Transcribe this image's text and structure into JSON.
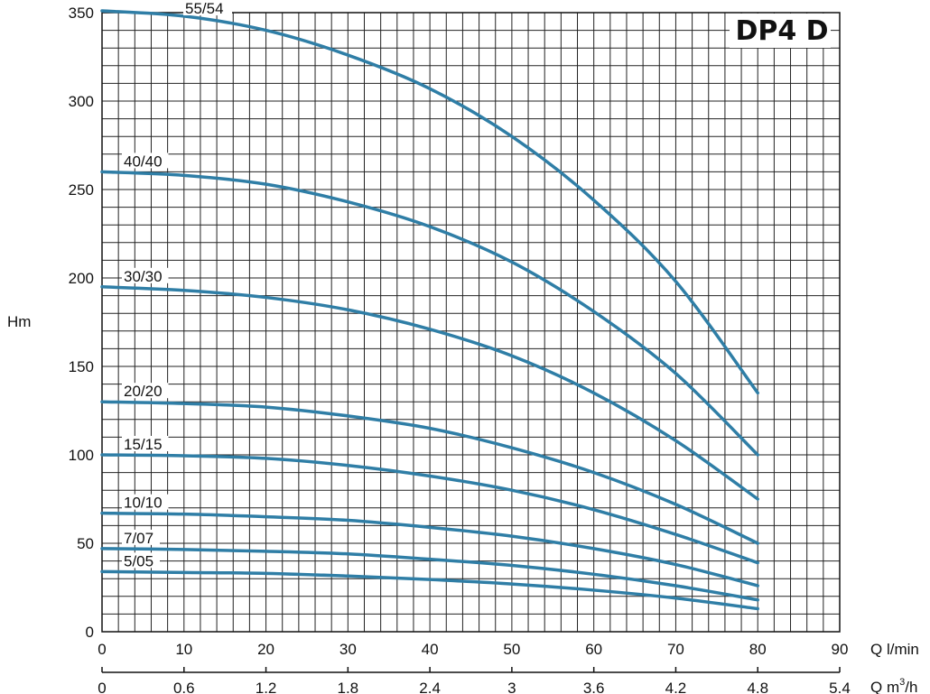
{
  "chart_data": {
    "type": "line",
    "title": "DP4 D",
    "ylabel": "Hm",
    "xlabel": "Q l/min",
    "x2label_prefix": "Q m",
    "x2label_sup": "3",
    "x2label_suffix": "/h",
    "ylim": [
      0,
      350
    ],
    "xlim": [
      0,
      90
    ],
    "y_ticks": [
      "0",
      "50",
      "100",
      "150",
      "200",
      "250",
      "300",
      "350"
    ],
    "x_ticks": [
      "0",
      "10",
      "20",
      "30",
      "40",
      "50",
      "60",
      "70",
      "80",
      "90"
    ],
    "x2_ticks": [
      "0",
      "0.6",
      "1.2",
      "1.8",
      "2.4",
      "3",
      "3.6",
      "4.2",
      "4.8",
      "5.4"
    ],
    "grid": true,
    "colors": {
      "curve": "#2f7ea6",
      "grid": "#222222",
      "title": "#2f7ea6"
    },
    "series": [
      {
        "name": "55/54",
        "x": [
          0,
          10,
          20,
          30,
          40,
          50,
          60,
          70,
          80
        ],
        "y": [
          351,
          348,
          340,
          326,
          307,
          280,
          244,
          198,
          135
        ]
      },
      {
        "name": "40/40",
        "x": [
          0,
          10,
          20,
          30,
          40,
          50,
          60,
          70,
          80
        ],
        "y": [
          260,
          258,
          253,
          243,
          229,
          209,
          181,
          146,
          100
        ]
      },
      {
        "name": "30/30",
        "x": [
          0,
          10,
          20,
          30,
          40,
          50,
          60,
          70,
          80
        ],
        "y": [
          195,
          193,
          189,
          182,
          171,
          156,
          135,
          108,
          75
        ]
      },
      {
        "name": "20/20",
        "x": [
          0,
          10,
          20,
          30,
          40,
          50,
          60,
          70,
          80
        ],
        "y": [
          130,
          129,
          127,
          122,
          115,
          104,
          90,
          72,
          50
        ]
      },
      {
        "name": "15/15",
        "x": [
          0,
          10,
          20,
          30,
          40,
          50,
          60,
          70,
          80
        ],
        "y": [
          100,
          99.5,
          98,
          94,
          88,
          80,
          69,
          55,
          39
        ]
      },
      {
        "name": "10/10",
        "x": [
          0,
          10,
          20,
          30,
          40,
          50,
          60,
          70,
          80
        ],
        "y": [
          67,
          66.5,
          65,
          63,
          59,
          54,
          47,
          38,
          26
        ]
      },
      {
        "name": "7/07",
        "x": [
          0,
          10,
          20,
          30,
          40,
          50,
          60,
          70,
          80
        ],
        "y": [
          47,
          46.5,
          45.5,
          44,
          41,
          37.5,
          32.5,
          26,
          18
        ]
      },
      {
        "name": "5/05",
        "x": [
          0,
          10,
          20,
          30,
          40,
          50,
          60,
          70,
          80
        ],
        "y": [
          34,
          33.5,
          33,
          31.5,
          29.5,
          27,
          23.5,
          19,
          13
        ]
      }
    ]
  }
}
